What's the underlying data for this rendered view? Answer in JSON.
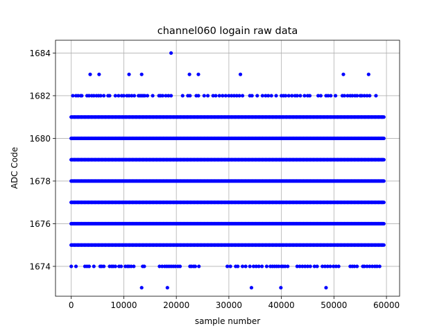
{
  "chart_data": {
    "type": "scatter",
    "title": "channel060 logain raw data",
    "xlabel": "sample number",
    "ylabel": "ADC Code",
    "xlim": [
      -3000,
      62500
    ],
    "ylim": [
      1672.6,
      1684.6
    ],
    "xticks": [
      0,
      10000,
      20000,
      30000,
      40000,
      50000,
      60000
    ],
    "yticks": [
      1674,
      1676,
      1678,
      1680,
      1682,
      1684
    ],
    "grid": true,
    "marker_color": "#0000ff",
    "series": [
      {
        "x_range": [
          0,
          59500
        ],
        "dense_levels": [
          1675,
          1676,
          1677,
          1678,
          1679,
          1680,
          1681
        ],
        "sparse_points": [
          {
            "y": 1684,
            "x": [
              19000
            ]
          },
          {
            "y": 1683,
            "x": [
              3600,
              5300,
              11000,
              13400,
              22500,
              24200,
              32200,
              51800,
              56600
            ]
          },
          {
            "y": 1682,
            "x": [
              300,
              900,
              1300,
              1800,
              2000,
              3000,
              3400,
              3900,
              4300,
              4800,
              5200,
              5600,
              6200,
              7000,
              7300,
              8400,
              9000,
              9600,
              10000,
              10600,
              11000,
              11500,
              12000,
              12800,
              13100,
              13400,
              13700,
              14000,
              14500,
              15500,
              16700,
              17000,
              17400,
              18000,
              18500,
              19000,
              21200,
              22200,
              22600,
              23800,
              24200,
              25300,
              26000,
              27000,
              27500,
              28200,
              28800,
              29400,
              30000,
              30500,
              31000,
              31500,
              32000,
              32600,
              34000,
              34400,
              35400,
              36400,
              37000,
              37500,
              38100,
              39000,
              40000,
              40400,
              40800,
              41400,
              42000,
              42600,
              43000,
              43600,
              44400,
              45000,
              45400,
              47000,
              47500,
              48500,
              48900,
              49400,
              50300,
              51600,
              52000,
              52600,
              53100,
              53500,
              54000,
              54400,
              55000,
              55300,
              55800,
              56300,
              56800,
              58000
            ]
          },
          {
            "y": 1674,
            "x": [
              0,
              900,
              2600,
              3000,
              3400,
              4300,
              5500,
              5800,
              6200,
              7300,
              7700,
              8000,
              8400,
              9100,
              9500,
              10300,
              10700,
              11000,
              11400,
              11900,
              13600,
              13900,
              16800,
              17300,
              17800,
              18200,
              18600,
              19000,
              19400,
              19800,
              20300,
              20700,
              22600,
              22900,
              23300,
              23600,
              24300,
              29700,
              30300,
              31300,
              31700,
              32600,
              33200,
              34000,
              34700,
              35200,
              35700,
              36300,
              37200,
              37900,
              38300,
              38700,
              39100,
              39500,
              40000,
              40300,
              40700,
              41200,
              43000,
              43500,
              44000,
              44500,
              45000,
              45500,
              46300,
              46800,
              47800,
              48300,
              48800,
              49300,
              49900,
              50400,
              50900,
              53100,
              53500,
              53900,
              54400,
              55500,
              55800,
              56300,
              56800,
              57300,
              57800,
              58200,
              58700
            ]
          },
          {
            "y": 1673,
            "x": [
              13400,
              18300,
              34300,
              39900,
              48500
            ]
          }
        ]
      }
    ]
  }
}
